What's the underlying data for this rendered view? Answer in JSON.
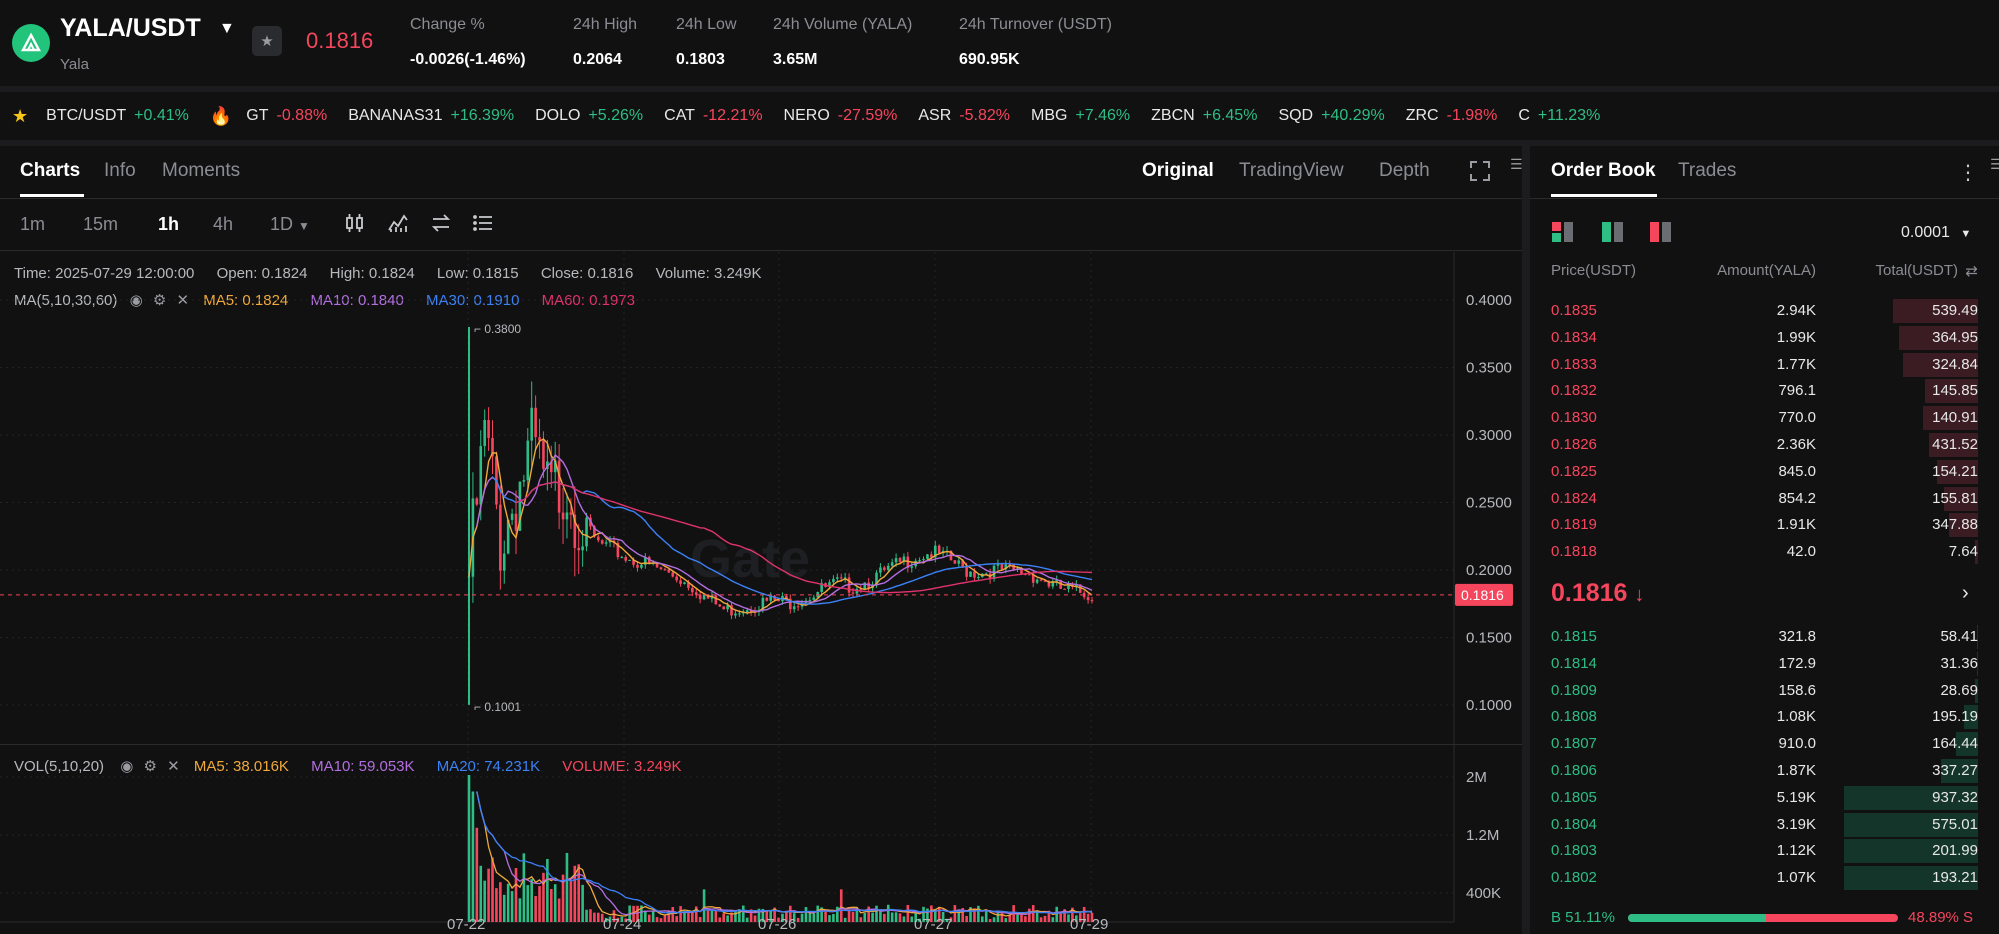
{
  "header": {
    "pair": "YALA/USDT",
    "pair_sub": "Yala",
    "last_price": "0.1816",
    "stats": [
      {
        "label": "Change %",
        "value": "-0.0026(-1.46%)",
        "tone": "red"
      },
      {
        "label": "24h High",
        "value": "0.2064",
        "tone": "white"
      },
      {
        "label": "24h Low",
        "value": "0.1803",
        "tone": "white"
      },
      {
        "label": "24h Volume (YALA)",
        "value": "3.65M",
        "tone": "white"
      },
      {
        "label": "24h Turnover (USDT)",
        "value": "690.95K",
        "tone": "white"
      }
    ]
  },
  "ticker": [
    {
      "name": "BTC/USDT",
      "change": "+0.41%",
      "up": true
    },
    {
      "name": "GT",
      "change": "-0.88%",
      "up": false
    },
    {
      "name": "BANANAS31",
      "change": "+16.39%",
      "up": true
    },
    {
      "name": "DOLO",
      "change": "+5.26%",
      "up": true
    },
    {
      "name": "CAT",
      "change": "-12.21%",
      "up": false
    },
    {
      "name": "NERO",
      "change": "-27.59%",
      "up": false
    },
    {
      "name": "ASR",
      "change": "-5.82%",
      "up": false
    },
    {
      "name": "MBG",
      "change": "+7.46%",
      "up": true
    },
    {
      "name": "ZBCN",
      "change": "+6.45%",
      "up": true
    },
    {
      "name": "SQD",
      "change": "+40.29%",
      "up": true
    },
    {
      "name": "ZRC",
      "change": "-1.98%",
      "up": false
    },
    {
      "name": "C",
      "change": "+11.23%",
      "up": true
    }
  ],
  "chart_panel": {
    "tabs": [
      "Charts",
      "Info",
      "Moments"
    ],
    "views": [
      "Original",
      "TradingView",
      "Depth"
    ],
    "timeframes": [
      "1m",
      "15m",
      "1h",
      "4h",
      "1D"
    ],
    "active_timeframe": "1h"
  },
  "ohlc": {
    "time": "Time: 2025-07-29 12:00:00",
    "open": "Open: 0.1824",
    "high": "High: 0.1824",
    "low": "Low: 0.1815",
    "close": "Close: 0.1816",
    "volume": "Volume: 3.249K"
  },
  "ma": {
    "label": "MA(5,10,30,60)",
    "ma5": "MA5: 0.1824",
    "ma10": "MA10: 0.1840",
    "ma30": "MA30: 0.1910",
    "ma60": "MA60: 0.1973"
  },
  "vol": {
    "label": "VOL(5,10,20)",
    "ma5": "MA5: 38.016K",
    "ma10": "MA10: 59.053K",
    "ma20": "MA20: 74.231K",
    "volume": "VOLUME: 3.249K"
  },
  "chart_data": {
    "type": "candlestick",
    "price_axis_ticks": [
      "0.4000",
      "0.3500",
      "0.3000",
      "0.2500",
      "0.2000",
      "0.1500",
      "0.1000"
    ],
    "price_ticks_values": [
      0.4,
      0.35,
      0.3,
      0.25,
      0.2,
      0.15,
      0.1
    ],
    "volume_axis_ticks": [
      "2M",
      "1.2M",
      "400K"
    ],
    "volume_ticks_values": [
      2000000,
      1200000,
      400000
    ],
    "date_ticks": [
      "07-22",
      "07-24",
      "07-26",
      "07-27",
      "07-29"
    ],
    "high_marker": "0.3800",
    "low_marker": "0.1001",
    "current_price": "0.1816",
    "current_price_value": 0.1816,
    "colors": {
      "up": "#2ebd85",
      "down": "#f6465d",
      "ma5": "#f0a93b",
      "ma10": "#b36fe0",
      "ma30": "#3b82f6",
      "ma60": "#e0336b"
    },
    "close_path": [
      0.195,
      0.3,
      0.22,
      0.26,
      0.29,
      0.25,
      0.27,
      0.24,
      0.22,
      0.215,
      0.208,
      0.205,
      0.2,
      0.195,
      0.188,
      0.178,
      0.17,
      0.172,
      0.175,
      0.177,
      0.176,
      0.18,
      0.185,
      0.19,
      0.188,
      0.192,
      0.198,
      0.205,
      0.21,
      0.213,
      0.208,
      0.2,
      0.198,
      0.2,
      0.199,
      0.198,
      0.192,
      0.186,
      0.184,
      0.1816
    ]
  },
  "order_book": {
    "tabs": [
      "Order Book",
      "Trades"
    ],
    "precision": "0.0001",
    "col_price": "Price(USDT)",
    "col_amount": "Amount(YALA)",
    "col_total": "Total(USDT)",
    "asks": [
      {
        "price": "0.1835",
        "amount": "2.94K",
        "total": "539.49",
        "depth": 0.62
      },
      {
        "price": "0.1834",
        "amount": "1.99K",
        "total": "364.95",
        "depth": 0.58
      },
      {
        "price": "0.1833",
        "amount": "1.77K",
        "total": "324.84",
        "depth": 0.55
      },
      {
        "price": "0.1832",
        "amount": "796.1",
        "total": "145.85",
        "depth": 0.39
      },
      {
        "price": "0.1830",
        "amount": "770.0",
        "total": "140.91",
        "depth": 0.4
      },
      {
        "price": "0.1826",
        "amount": "2.36K",
        "total": "431.52",
        "depth": 0.36
      },
      {
        "price": "0.1825",
        "amount": "845.0",
        "total": "154.21",
        "depth": 0.3
      },
      {
        "price": "0.1824",
        "amount": "854.2",
        "total": "155.81",
        "depth": 0.25
      },
      {
        "price": "0.1819",
        "amount": "1.91K",
        "total": "347.88",
        "depth": 0.21
      },
      {
        "price": "0.1818",
        "amount": "42.0",
        "total": "7.64",
        "depth": 0.02
      }
    ],
    "mid_price": "0.1816",
    "bids": [
      {
        "price": "0.1815",
        "amount": "321.8",
        "total": "58.41",
        "depth": 0.01
      },
      {
        "price": "0.1814",
        "amount": "172.9",
        "total": "31.36",
        "depth": 0.01
      },
      {
        "price": "0.1809",
        "amount": "158.6",
        "total": "28.69",
        "depth": 0.02
      },
      {
        "price": "0.1808",
        "amount": "1.08K",
        "total": "195.19",
        "depth": 0.1
      },
      {
        "price": "0.1807",
        "amount": "910.0",
        "total": "164.44",
        "depth": 0.16
      },
      {
        "price": "0.1806",
        "amount": "1.87K",
        "total": "337.27",
        "depth": 0.27
      },
      {
        "price": "0.1805",
        "amount": "5.19K",
        "total": "937.32",
        "depth": 0.98
      },
      {
        "price": "0.1804",
        "amount": "3.19K",
        "total": "575.01",
        "depth": 0.98
      },
      {
        "price": "0.1803",
        "amount": "1.12K",
        "total": "201.99",
        "depth": 0.98
      },
      {
        "price": "0.1802",
        "amount": "1.07K",
        "total": "193.21",
        "depth": 0.98
      }
    ],
    "buy_ratio": "B 51.11%",
    "sell_ratio": "48.89% S",
    "buy_ratio_value": 0.5111
  }
}
